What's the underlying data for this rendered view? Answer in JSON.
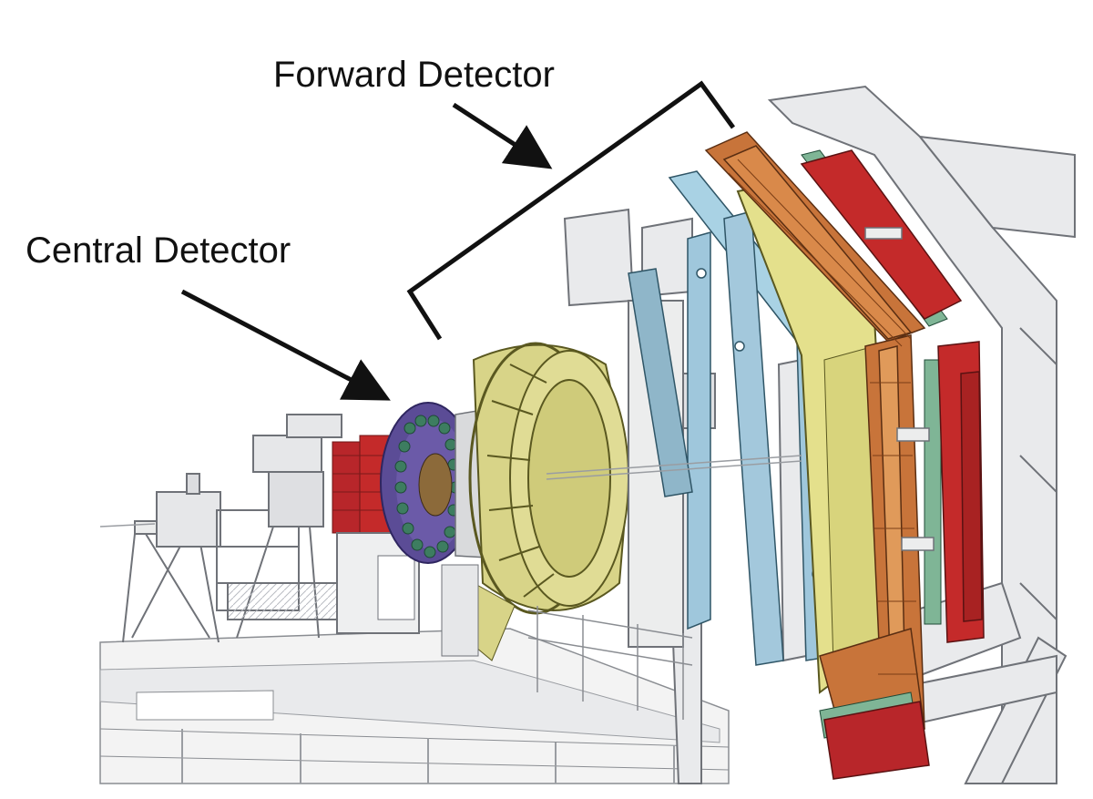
{
  "labels": {
    "forward_detector": "Forward Detector",
    "central_detector": "Central Detector"
  },
  "colors": {
    "background": "#ffffff",
    "frame_gray": "#e9eaec",
    "frame_line": "#8a8d92",
    "central_barrel_yellow": "#d8d488",
    "central_detector_purple": "#6b5aa8",
    "drift_chamber_blue": "#9fc7dc",
    "calorimeter_yellow": "#e4e08c",
    "forward_copper": "#c8743a",
    "forward_red": "#c42a2a",
    "pointer_black": "#111111"
  }
}
